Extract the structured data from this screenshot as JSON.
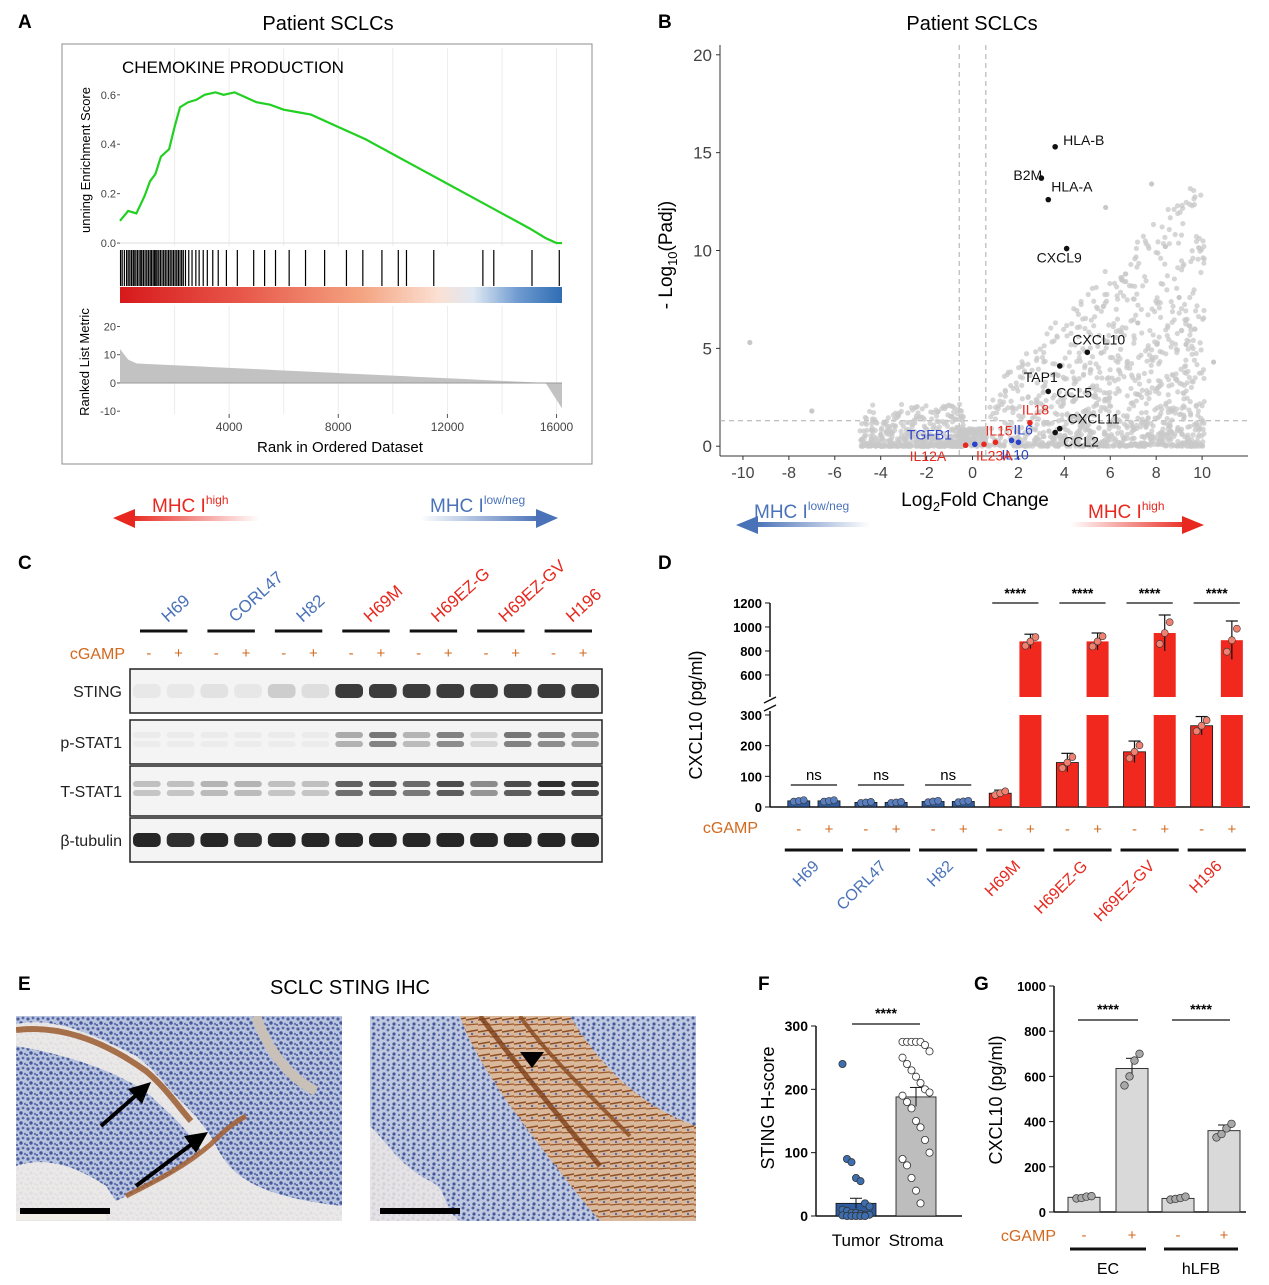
{
  "figure": {
    "panel_letters": [
      "A",
      "B",
      "C",
      "D",
      "E",
      "F",
      "G"
    ],
    "colors": {
      "high": "#e8281e",
      "low": "#4a72b8",
      "bar_red": "#f0281e",
      "bar_blue": "#2f5c9e",
      "grey": "#bdbdbd",
      "gsea_line": "#22d022"
    },
    "mhc_arrows": {
      "high_prefix": "MHC I",
      "high_sup": "high",
      "low_prefix": "MHC I",
      "low_sup": "low/neg"
    }
  },
  "chart_data": [
    {
      "panel": "A",
      "type": "line",
      "title": "Patient SCLCs",
      "inset_title": "CHEMOKINE PRODUCTION",
      "ylabel": "unning Enrichment Score",
      "ylabel2": "Ranked List Metric",
      "xlabel": "Rank in Ordered Dataset",
      "x_ticks": [
        "4000",
        "8000",
        "12000",
        "16000"
      ],
      "y_ticks": [
        "0.0",
        "0.2",
        "0.4",
        "0.6"
      ],
      "y2_ticks": [
        "-10",
        "0",
        "10",
        "20"
      ],
      "xlim": [
        0,
        16200
      ],
      "ylim": [
        -0.02,
        0.66
      ],
      "x": [
        0,
        300,
        600,
        900,
        1100,
        1300,
        1500,
        1800,
        2000,
        2200,
        2500,
        2800,
        3100,
        3500,
        3800,
        4200,
        4600,
        5000,
        5500,
        6000,
        6500,
        7000,
        8000,
        9000,
        10000,
        11000,
        12000,
        13000,
        14000,
        15000,
        15600,
        16000,
        16200
      ],
      "y": [
        0.09,
        0.13,
        0.12,
        0.19,
        0.25,
        0.28,
        0.35,
        0.38,
        0.47,
        0.55,
        0.57,
        0.58,
        0.6,
        0.61,
        0.6,
        0.61,
        0.59,
        0.57,
        0.56,
        0.54,
        0.53,
        0.52,
        0.47,
        0.42,
        0.36,
        0.3,
        0.24,
        0.18,
        0.12,
        0.06,
        0.02,
        0.0,
        0.0
      ],
      "hit_ranks": [
        20,
        80,
        160,
        240,
        300,
        360,
        420,
        480,
        520,
        580,
        640,
        700,
        760,
        800,
        860,
        920,
        980,
        1040,
        1100,
        1150,
        1210,
        1260,
        1310,
        1360,
        1420,
        1480,
        1540,
        1600,
        1660,
        1720,
        1780,
        1840,
        1900,
        1960,
        2020,
        2080,
        2140,
        2200,
        2260,
        2320,
        2400,
        2520,
        2640,
        2780,
        2900,
        3050,
        3200,
        3400,
        3600,
        3900,
        4300,
        4900,
        5300,
        5700,
        6200,
        6800,
        7500,
        8300,
        8900,
        9600,
        10200,
        10500,
        11500,
        13300,
        13700,
        15100,
        16100
      ]
    },
    {
      "panel": "B",
      "type": "scatter",
      "title": "Patient SCLCs",
      "ylabel_prefix": "- Log",
      "ylabel_sub": "10",
      "ylabel_suffix": "(Padj)",
      "xlabel_prefix": "Log",
      "xlabel_sub": "2",
      "xlabel_suffix": "Fold Change",
      "xlim": [
        -11,
        12
      ],
      "ylim": [
        -0.5,
        20.5
      ],
      "x_ticks": [
        -10,
        -8,
        -6,
        -4,
        -2,
        0,
        2,
        4,
        6,
        8,
        10
      ],
      "y_ticks": [
        0,
        5,
        10,
        15,
        20
      ],
      "thresholds": {
        "x": [
          -0.58,
          0.58
        ],
        "y": 1.3
      },
      "labeled_points": [
        {
          "gene": "HLA-B",
          "x": 3.6,
          "y": 15.3,
          "color": "black"
        },
        {
          "gene": "B2M",
          "x": 3.0,
          "y": 13.7,
          "color": "black"
        },
        {
          "gene": "HLA-A",
          "x": 3.3,
          "y": 12.6,
          "color": "black"
        },
        {
          "gene": "CXCL9",
          "x": 4.1,
          "y": 10.1,
          "color": "black"
        },
        {
          "gene": "CXCL10",
          "x": 5.0,
          "y": 4.8,
          "color": "black"
        },
        {
          "gene": "TAP1",
          "x": 3.8,
          "y": 4.1,
          "color": "black"
        },
        {
          "gene": "CCL5",
          "x": 3.3,
          "y": 2.8,
          "color": "black"
        },
        {
          "gene": "CXCL11",
          "x": 3.8,
          "y": 0.9,
          "color": "black"
        },
        {
          "gene": "CCL2",
          "x": 3.6,
          "y": 0.7,
          "color": "black"
        },
        {
          "gene": "IL18",
          "x": 2.5,
          "y": 1.2,
          "color": "red"
        },
        {
          "gene": "IL15",
          "x": 1.0,
          "y": 0.2,
          "color": "red"
        },
        {
          "gene": "IL6",
          "x": 2.0,
          "y": 0.2,
          "color": "blue"
        },
        {
          "gene": "IL10",
          "x": 1.7,
          "y": 0.3,
          "color": "blue"
        },
        {
          "gene": "TGFB1",
          "x": 0.1,
          "y": 0.1,
          "color": "blue"
        },
        {
          "gene": "IL12A",
          "x": -0.3,
          "y": 0.05,
          "color": "red"
        },
        {
          "gene": "IL23A",
          "x": 0.5,
          "y": 0.1,
          "color": "red"
        }
      ]
    },
    {
      "panel": "C",
      "type": "table",
      "title": "Western blot",
      "cell_lines": [
        {
          "name": "H69",
          "group": "low"
        },
        {
          "name": "CORL47",
          "group": "low"
        },
        {
          "name": "H82",
          "group": "low"
        },
        {
          "name": "H69M",
          "group": "high"
        },
        {
          "name": "H69EZ-G",
          "group": "high"
        },
        {
          "name": "H69EZ-GV",
          "group": "high"
        },
        {
          "name": "H196",
          "group": "high"
        }
      ],
      "treatment_label": "cGAMP",
      "treatment_states": [
        "-",
        "+"
      ],
      "blots": [
        "STING",
        "p-STAT1",
        "T-STAT1",
        "β-tubulin"
      ],
      "band_intensity": {
        "STING": [
          0.05,
          0.05,
          0.08,
          0.06,
          0.18,
          0.1,
          0.85,
          0.85,
          0.85,
          0.85,
          0.85,
          0.85,
          0.85,
          0.85
        ],
        "p-STAT1": [
          0.02,
          0.02,
          0.02,
          0.02,
          0.02,
          0.02,
          0.35,
          0.6,
          0.3,
          0.55,
          0.15,
          0.6,
          0.55,
          0.45
        ],
        "T-STAT1": [
          0.25,
          0.25,
          0.3,
          0.3,
          0.25,
          0.25,
          0.7,
          0.75,
          0.65,
          0.8,
          0.5,
          0.8,
          0.95,
          0.9
        ],
        "β-tubulin": [
          0.95,
          0.9,
          0.95,
          0.9,
          0.95,
          0.95,
          0.95,
          0.95,
          0.95,
          0.95,
          0.95,
          0.95,
          0.95,
          0.95
        ]
      }
    },
    {
      "panel": "D",
      "type": "bar",
      "ylabel": "CXCL10 (pg/ml)",
      "treatment_label": "cGAMP",
      "categories": [
        "H69",
        "CORL47",
        "H82",
        "H69M",
        "H69EZ-G",
        "H69EZ-GV",
        "H196"
      ],
      "groups": [
        "low",
        "low",
        "low",
        "high",
        "high",
        "high",
        "high"
      ],
      "ylim_lower": [
        0,
        300
      ],
      "ylim_upper": [
        500,
        1200
      ],
      "y_ticks_lower": [
        0,
        100,
        200,
        300
      ],
      "y_ticks_upper": [
        600,
        800,
        1000,
        1200
      ],
      "series": [
        {
          "name": "-",
          "values": [
            20,
            15,
            18,
            45,
            145,
            180,
            265
          ],
          "errors": [
            4,
            3,
            4,
            10,
            30,
            35,
            30
          ]
        },
        {
          "name": "+",
          "values": [
            20,
            15,
            18,
            880,
            880,
            950,
            890
          ],
          "errors": [
            4,
            3,
            4,
            60,
            70,
            150,
            160
          ]
        }
      ],
      "significance": [
        "ns",
        "ns",
        "ns",
        "****",
        "****",
        "****",
        "****"
      ]
    },
    {
      "panel": "F",
      "type": "bar",
      "ylabel": "STING H-score",
      "significance": "****",
      "categories": [
        "Tumor",
        "Stroma"
      ],
      "values": [
        20,
        188
      ],
      "errors": [
        8,
        15
      ],
      "ylim": [
        0,
        300
      ],
      "y_ticks": [
        0,
        100,
        200,
        300
      ],
      "points": {
        "Tumor": [
          240,
          90,
          85,
          60,
          55,
          20,
          15,
          10,
          8,
          5,
          5,
          3,
          2,
          2,
          1,
          0,
          0,
          0,
          0,
          0
        ],
        "Stroma": [
          275,
          275,
          275,
          275,
          275,
          270,
          260,
          250,
          240,
          230,
          220,
          210,
          200,
          195,
          190,
          180,
          170,
          150,
          140,
          120,
          100,
          90,
          80,
          60,
          40,
          20
        ]
      }
    },
    {
      "panel": "G",
      "type": "bar",
      "ylabel": "CXCL10 (pg/ml)",
      "treatment_label": "cGAMP",
      "categories": [
        "EC",
        "hLFB"
      ],
      "series": [
        {
          "name": "-",
          "values": [
            65,
            60
          ],
          "errors": [
            8,
            8
          ]
        },
        {
          "name": "+",
          "values": [
            635,
            360
          ],
          "errors": [
            45,
            25
          ]
        }
      ],
      "points": {
        "EC-": [
          60,
          62,
          68,
          70
        ],
        "EC+": [
          560,
          600,
          670,
          700
        ],
        "hLFB-": [
          55,
          58,
          62,
          68
        ],
        "hLFB+": [
          330,
          345,
          370,
          390
        ]
      },
      "ylim": [
        0,
        1000
      ],
      "y_ticks": [
        0,
        200,
        400,
        600,
        800,
        1000
      ],
      "significance": [
        "****",
        "****"
      ]
    }
  ],
  "ihc": {
    "title": "SCLC STING IHC"
  }
}
